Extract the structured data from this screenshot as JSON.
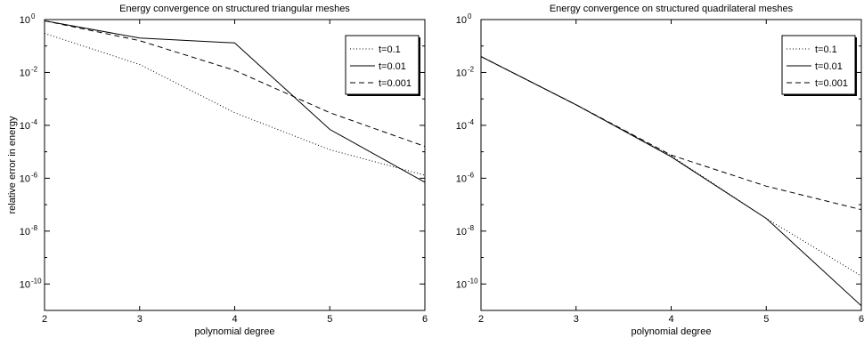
{
  "chart_data": [
    {
      "type": "line",
      "title": "Energy convergence on structured triangular meshes",
      "xlabel": "polynomial degree",
      "ylabel": "relative error in energy",
      "xscale": "linear",
      "yscale": "log",
      "xlim": [
        2,
        6
      ],
      "ylim": [
        1e-11,
        1
      ],
      "xticks": [
        "2",
        "3",
        "4",
        "5",
        "6"
      ],
      "yticks": [
        {
          "base": "10",
          "exp": "0"
        },
        {
          "base": "10",
          "exp": "-2"
        },
        {
          "base": "10",
          "exp": "-4"
        },
        {
          "base": "10",
          "exp": "-6"
        },
        {
          "base": "10",
          "exp": "-8"
        },
        {
          "base": "10",
          "exp": "-10"
        }
      ],
      "grid": false,
      "legend_position": "top-right",
      "series": [
        {
          "name": "t=0.1",
          "style": "dotted",
          "x": [
            2,
            3,
            4,
            5,
            6
          ],
          "y": [
            0.3,
            0.02,
            0.0003,
            1.2e-05,
            1.3e-06
          ]
        },
        {
          "name": "t=0.01",
          "style": "solid",
          "x": [
            2,
            3,
            4,
            5,
            6
          ],
          "y": [
            0.9,
            0.2,
            0.13,
            7e-05,
            7e-07
          ]
        },
        {
          "name": "t=0.001",
          "style": "dashed",
          "x": [
            2,
            3,
            4,
            5,
            6
          ],
          "y": [
            0.9,
            0.16,
            0.012,
            0.0003,
            1.6e-05
          ]
        }
      ]
    },
    {
      "type": "line",
      "title": "Energy convergence on structured quadrilateral meshes",
      "xlabel": "polynomial degree",
      "ylabel": "",
      "xscale": "linear",
      "yscale": "log",
      "xlim": [
        2,
        6
      ],
      "ylim": [
        1e-11,
        1
      ],
      "xticks": [
        "2",
        "3",
        "4",
        "5",
        "6"
      ],
      "yticks": [
        {
          "base": "10",
          "exp": "0"
        },
        {
          "base": "10",
          "exp": "-2"
        },
        {
          "base": "10",
          "exp": "-4"
        },
        {
          "base": "10",
          "exp": "-6"
        },
        {
          "base": "10",
          "exp": "-8"
        },
        {
          "base": "10",
          "exp": "-10"
        }
      ],
      "grid": false,
      "legend_position": "top-right",
      "series": [
        {
          "name": "t=0.1",
          "style": "dotted",
          "x": [
            2,
            3,
            4,
            5,
            6
          ],
          "y": [
            0.04,
            0.0006,
            7e-06,
            3e-08,
            2e-10
          ]
        },
        {
          "name": "t=0.01",
          "style": "solid",
          "x": [
            2,
            3,
            4,
            5,
            6
          ],
          "y": [
            0.04,
            0.0006,
            6.5e-06,
            3e-08,
            1.5e-11
          ]
        },
        {
          "name": "t=0.001",
          "style": "dashed",
          "x": [
            2,
            3,
            4,
            5,
            6
          ],
          "y": [
            0.04,
            0.0006,
            7.5e-06,
            5e-07,
            6.5e-08
          ]
        }
      ]
    }
  ]
}
